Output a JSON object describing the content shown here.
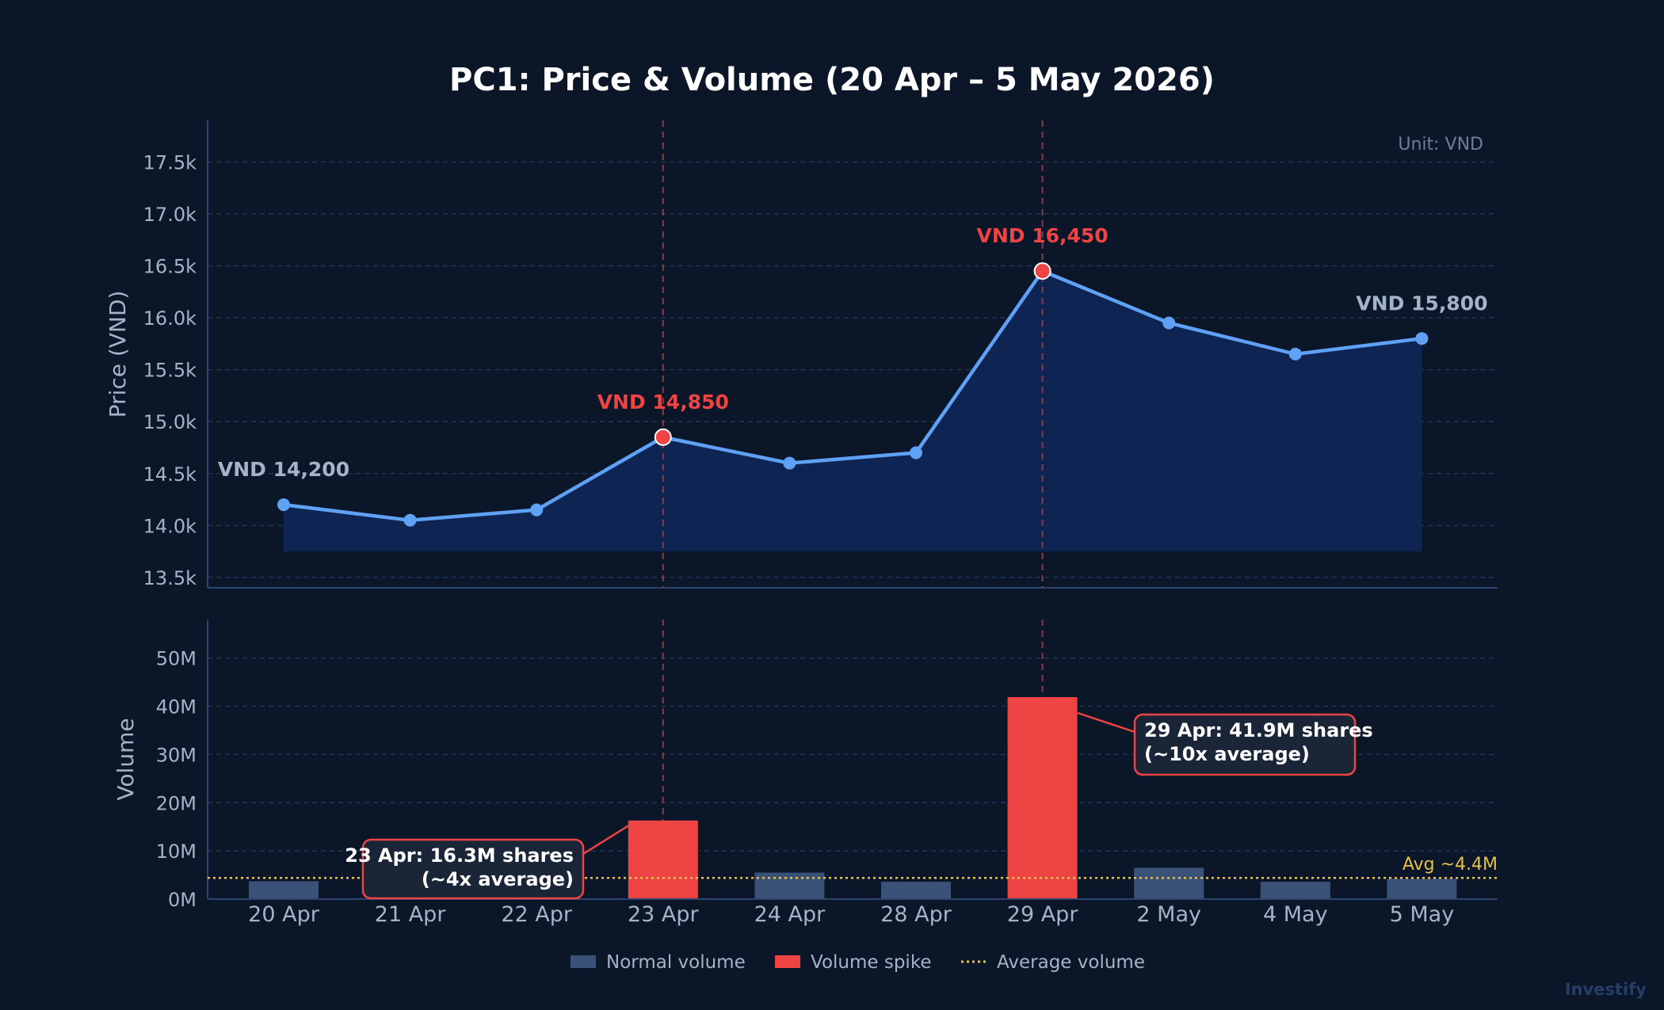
{
  "title": "PC1: Price & Volume (20 Apr – 5 May 2026)",
  "watermark": "Investify",
  "colors": {
    "background": "#0b1628",
    "price_line": "#5ea1f5",
    "area_fill": "#0f2656",
    "spike": "#ef4444",
    "normal_volume": "#3a5278",
    "avg_line": "#e5c04a",
    "grid": "#1e3558",
    "text": "#a3b3c8",
    "title": "#ffffff"
  },
  "chart_data": [
    {
      "type": "line",
      "unit_note": "Unit: VND",
      "ylabel": "Price (VND)",
      "ylim": [
        13400,
        17900
      ],
      "y_ticks": [
        13500,
        14000,
        14500,
        15000,
        15500,
        16000,
        16500,
        17000,
        17500
      ],
      "y_tick_labels": [
        "13.5k",
        "14.0k",
        "14.5k",
        "15.0k",
        "15.5k",
        "16.0k",
        "16.5k",
        "17.0k",
        "17.5k"
      ],
      "categories": [
        "20 Apr",
        "21 Apr",
        "22 Apr",
        "23 Apr",
        "24 Apr",
        "28 Apr",
        "29 Apr",
        "2 May",
        "4 May",
        "5 May"
      ],
      "values": [
        14200,
        14050,
        14150,
        14850,
        14600,
        14700,
        16450,
        15950,
        15650,
        15800
      ],
      "highlight_indices": [
        3,
        6
      ],
      "grid": true,
      "price_labels": [
        {
          "index": 0,
          "text": "VND 14,200",
          "style": "normal"
        },
        {
          "index": 3,
          "text": "VND 14,850",
          "style": "spike"
        },
        {
          "index": 6,
          "text": "VND 16,450",
          "style": "spike"
        },
        {
          "index": 9,
          "text": "VND 15,800",
          "style": "normal"
        }
      ]
    },
    {
      "type": "bar",
      "ylabel": "Volume",
      "ylim": [
        0,
        58
      ],
      "y_ticks": [
        0,
        10,
        20,
        30,
        40,
        50
      ],
      "y_tick_labels": [
        "0M",
        "10M",
        "20M",
        "30M",
        "40M",
        "50M"
      ],
      "categories": [
        "20 Apr",
        "21 Apr",
        "22 Apr",
        "23 Apr",
        "24 Apr",
        "28 Apr",
        "29 Apr",
        "2 May",
        "4 May",
        "5 May"
      ],
      "values_millions": [
        3.7,
        2.9,
        2.6,
        16.3,
        5.5,
        3.6,
        41.9,
        6.5,
        3.6,
        4.2
      ],
      "spike_indices": [
        3,
        6
      ],
      "average": 4.4,
      "average_label": "Avg ~4.4M",
      "grid": true,
      "annotations": [
        {
          "index": 3,
          "line1": "23 Apr: 16.3M shares",
          "line2": "(~4x average)"
        },
        {
          "index": 6,
          "line1": "29 Apr: 41.9M shares",
          "line2": "(~10x average)"
        }
      ],
      "legend": {
        "placement": "bottom-center",
        "items": [
          {
            "label": "Normal volume",
            "kind": "normal"
          },
          {
            "label": "Volume spike",
            "kind": "spike"
          },
          {
            "label": "Average volume",
            "kind": "average"
          }
        ]
      }
    }
  ]
}
